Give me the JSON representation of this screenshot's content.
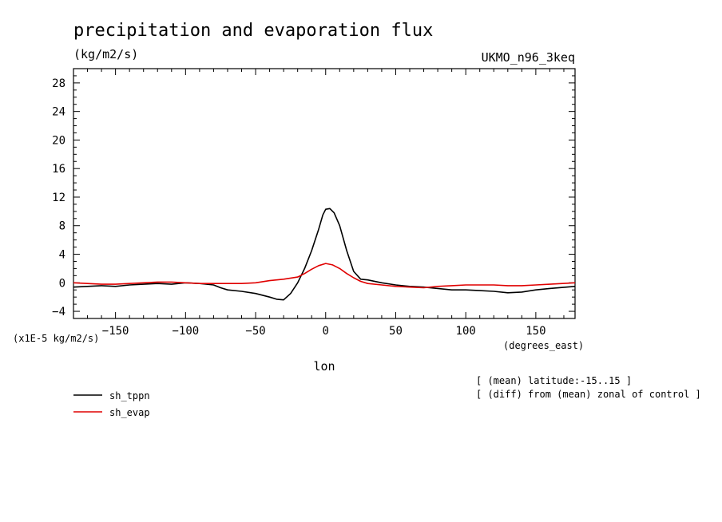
{
  "chart_data": {
    "type": "line",
    "title": "precipitation and evaporation flux",
    "units": "(kg/m2/s)",
    "model": "UKMO_n96_3keq",
    "xlabel": "lon",
    "xunits": "(degrees_east)",
    "yscale_label": "(x1E-5 kg/m2/s)",
    "xlim": [
      -180,
      178
    ],
    "ylim": [
      -5,
      30
    ],
    "xticks": [
      -150,
      -100,
      -50,
      0,
      50,
      100,
      150
    ],
    "yticks": [
      -4,
      0,
      4,
      8,
      12,
      16,
      20,
      24,
      28
    ],
    "notes": [
      "[ (mean) latitude:-15..15 ]",
      "[ (diff) from (mean) zonal of control ]"
    ],
    "series": [
      {
        "name": "sh_tppn",
        "color": "#000000",
        "x": [
          -180,
          -170,
          -160,
          -150,
          -140,
          -130,
          -120,
          -110,
          -100,
          -90,
          -80,
          -75,
          -70,
          -60,
          -50,
          -40,
          -35,
          -30,
          -25,
          -20,
          -15,
          -10,
          -5,
          -2,
          0,
          3,
          6,
          10,
          15,
          20,
          25,
          30,
          40,
          50,
          60,
          70,
          80,
          90,
          100,
          110,
          120,
          130,
          140,
          150,
          160,
          178
        ],
        "values": [
          -0.6,
          -0.5,
          -0.4,
          -0.5,
          -0.3,
          -0.2,
          -0.1,
          -0.2,
          0.0,
          -0.1,
          -0.3,
          -0.7,
          -1.0,
          -1.2,
          -1.5,
          -2.0,
          -2.3,
          -2.4,
          -1.5,
          0.0,
          2.0,
          4.5,
          7.5,
          9.5,
          10.3,
          10.4,
          9.8,
          8.0,
          4.5,
          1.6,
          0.5,
          0.4,
          0.0,
          -0.3,
          -0.5,
          -0.6,
          -0.8,
          -1.0,
          -1.0,
          -1.1,
          -1.2,
          -1.4,
          -1.3,
          -1.0,
          -0.8,
          -0.5
        ]
      },
      {
        "name": "sh_evap",
        "color": "#e00000",
        "x": [
          -180,
          -170,
          -160,
          -150,
          -140,
          -130,
          -120,
          -110,
          -100,
          -90,
          -80,
          -70,
          -60,
          -50,
          -40,
          -30,
          -20,
          -15,
          -10,
          -5,
          0,
          5,
          10,
          15,
          20,
          25,
          30,
          40,
          50,
          60,
          70,
          80,
          90,
          100,
          110,
          120,
          130,
          140,
          150,
          160,
          178
        ],
        "values": [
          0.0,
          -0.1,
          -0.2,
          -0.2,
          -0.1,
          0.0,
          0.1,
          0.1,
          0.0,
          -0.1,
          -0.1,
          -0.1,
          -0.1,
          0.0,
          0.3,
          0.5,
          0.8,
          1.3,
          1.9,
          2.4,
          2.7,
          2.5,
          2.0,
          1.3,
          0.7,
          0.2,
          -0.1,
          -0.3,
          -0.5,
          -0.6,
          -0.7,
          -0.5,
          -0.4,
          -0.3,
          -0.3,
          -0.3,
          -0.4,
          -0.4,
          -0.3,
          -0.2,
          0.0
        ]
      }
    ]
  }
}
